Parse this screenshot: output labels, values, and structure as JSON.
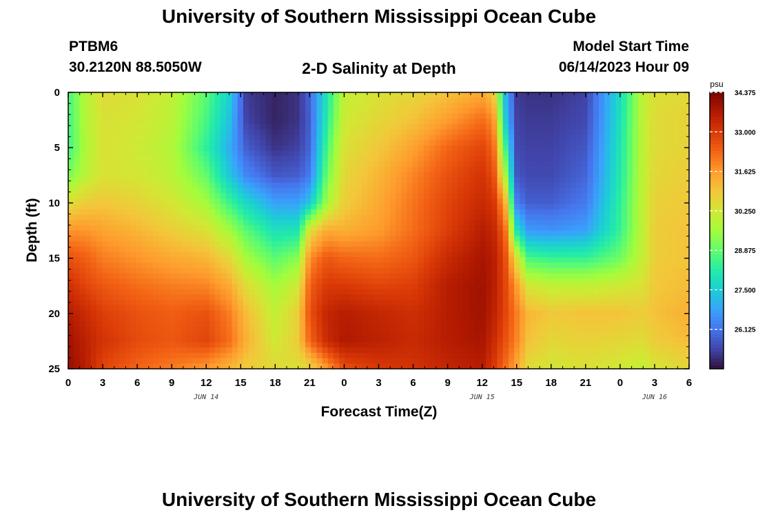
{
  "titles": {
    "main": "University of Southern Mississippi Ocean Cube",
    "bottom": "University of Southern Mississippi Ocean Cube"
  },
  "station": {
    "id": "PTBM6",
    "coords": "30.2120N  88.5050W"
  },
  "model": {
    "label": "Model Start Time",
    "value": "06/14/2023 Hour 09"
  },
  "chart_data": {
    "type": "heatmap",
    "title": "2-D Salinity at Depth",
    "xlabel": "Forecast Time(Z)",
    "ylabel": "Depth (ft)",
    "x_range_hours": [
      0,
      54
    ],
    "x_tick_hours": [
      0,
      3,
      6,
      9,
      12,
      15,
      18,
      21,
      24,
      27,
      30,
      33,
      36,
      39,
      42,
      45,
      48,
      51,
      54
    ],
    "x_tick_labels": [
      "0",
      "3",
      "6",
      "9",
      "12",
      "15",
      "18",
      "21",
      "0",
      "3",
      "6",
      "9",
      "12",
      "15",
      "18",
      "21",
      "0",
      "3",
      "6"
    ],
    "date_labels": [
      {
        "hour": 12,
        "label": "JUN 14"
      },
      {
        "hour": 36,
        "label": "JUN 15"
      },
      {
        "hour": 51,
        "label": "JUN 16"
      }
    ],
    "y_range_ft": [
      0,
      25
    ],
    "y_ticks": [
      0,
      5,
      10,
      15,
      20,
      25
    ],
    "colorbar": {
      "unit": "psu",
      "range": [
        24.75,
        34.375
      ],
      "tick_values": [
        34.375,
        33.0,
        31.625,
        30.25,
        28.875,
        27.5,
        26.125
      ],
      "tick_labels": [
        "34.375",
        "33.000",
        "31.625",
        "30.250",
        "28.875",
        "27.500",
        "26.125"
      ],
      "colors": [
        "#30123b",
        "#4145ab",
        "#4675ed",
        "#39a2fc",
        "#1bcfd4",
        "#24eca6",
        "#61fc6c",
        "#a4fc3b",
        "#d1e834",
        "#f3c63a",
        "#fe9b2d",
        "#f36315",
        "#d93806",
        "#b11901",
        "#7a0402"
      ]
    },
    "salinity_grid": {
      "depths_ft": [
        0,
        2.5,
        5,
        7.5,
        10,
        12.5,
        15,
        17.5,
        20,
        22.5,
        25
      ],
      "times_hr": [
        0,
        1.5,
        3,
        6,
        9,
        12,
        14,
        15.5,
        18,
        20,
        21,
        22.5,
        24,
        27,
        30,
        33,
        36,
        37,
        38,
        39,
        40,
        42,
        45,
        48,
        50,
        51,
        54
      ],
      "values_psu": [
        [
          28.6,
          29.8,
          30.5,
          30.4,
          30.0,
          28.8,
          27.6,
          25.3,
          25.0,
          25.2,
          25.9,
          28.0,
          30.0,
          30.4,
          30.6,
          31.0,
          31.4,
          30.9,
          27.2,
          25.3,
          25.2,
          25.2,
          25.4,
          27.8,
          30.0,
          30.4,
          30.6
        ],
        [
          28.5,
          29.8,
          30.4,
          30.3,
          29.9,
          28.6,
          27.3,
          25.4,
          25.0,
          25.2,
          25.8,
          28.2,
          30.2,
          30.6,
          31.0,
          31.6,
          32.2,
          31.8,
          27.5,
          25.4,
          25.3,
          25.3,
          25.5,
          27.9,
          30.0,
          30.5,
          30.7
        ],
        [
          28.5,
          29.7,
          30.4,
          30.2,
          29.8,
          28.3,
          27.0,
          25.8,
          25.2,
          25.4,
          25.9,
          28.6,
          30.4,
          30.9,
          31.5,
          32.3,
          32.8,
          32.3,
          28.6,
          25.5,
          25.4,
          25.4,
          25.7,
          28.0,
          30.0,
          30.5,
          30.7
        ],
        [
          29.1,
          29.9,
          30.4,
          30.3,
          29.9,
          28.9,
          27.4,
          26.4,
          25.7,
          25.8,
          26.2,
          29.0,
          30.6,
          31.2,
          31.9,
          32.6,
          33.1,
          32.7,
          29.7,
          25.7,
          25.5,
          25.5,
          25.9,
          28.1,
          30.0,
          30.6,
          30.8
        ],
        [
          30.5,
          30.8,
          30.9,
          30.7,
          30.3,
          29.6,
          28.5,
          27.7,
          26.8,
          26.8,
          27.4,
          29.6,
          30.8,
          31.4,
          32.1,
          32.8,
          33.3,
          33.1,
          31.4,
          26.3,
          25.8,
          25.8,
          26.2,
          28.3,
          30.0,
          30.7,
          30.9
        ],
        [
          31.7,
          31.7,
          31.5,
          31.2,
          30.8,
          30.4,
          29.6,
          28.8,
          27.9,
          28.0,
          30.5,
          31.4,
          31.3,
          31.6,
          32.2,
          32.9,
          33.6,
          33.4,
          32.3,
          28.0,
          26.7,
          26.6,
          26.8,
          28.4,
          30.0,
          30.8,
          31.0
        ],
        [
          32.6,
          32.4,
          32.0,
          31.7,
          31.4,
          31.2,
          30.6,
          29.6,
          28.8,
          29.3,
          31.8,
          32.5,
          32.3,
          32.2,
          32.5,
          33.3,
          33.8,
          33.6,
          32.7,
          30.4,
          28.6,
          28.4,
          28.4,
          29.0,
          30.1,
          30.8,
          31.0
        ],
        [
          33.2,
          32.8,
          32.5,
          32.2,
          32.0,
          31.9,
          31.4,
          30.5,
          29.6,
          30.2,
          32.4,
          33.0,
          33.0,
          32.8,
          32.9,
          33.6,
          33.9,
          33.6,
          32.8,
          31.6,
          30.3,
          30.0,
          30.0,
          30.2,
          30.4,
          30.9,
          31.1
        ],
        [
          33.6,
          33.3,
          32.9,
          32.6,
          32.4,
          32.6,
          32.0,
          31.1,
          30.0,
          30.8,
          32.6,
          33.4,
          33.6,
          33.4,
          33.2,
          33.6,
          33.9,
          33.5,
          32.8,
          32.0,
          31.2,
          30.9,
          31.0,
          31.0,
          30.8,
          31.0,
          31.3
        ],
        [
          33.9,
          33.5,
          33.1,
          32.7,
          32.5,
          32.8,
          32.2,
          31.3,
          30.2,
          30.8,
          32.3,
          33.3,
          33.7,
          33.5,
          33.3,
          33.6,
          33.8,
          33.3,
          32.6,
          31.9,
          31.0,
          30.6,
          30.7,
          30.6,
          30.5,
          30.8,
          31.1
        ],
        [
          34.0,
          33.6,
          32.8,
          32.3,
          32.0,
          31.6,
          31.2,
          30.8,
          30.6,
          30.4,
          30.6,
          31.6,
          32.6,
          33.0,
          33.1,
          33.4,
          33.6,
          33.0,
          32.2,
          31.4,
          30.5,
          30.3,
          30.4,
          30.2,
          30.0,
          30.3,
          30.6
        ]
      ]
    }
  }
}
